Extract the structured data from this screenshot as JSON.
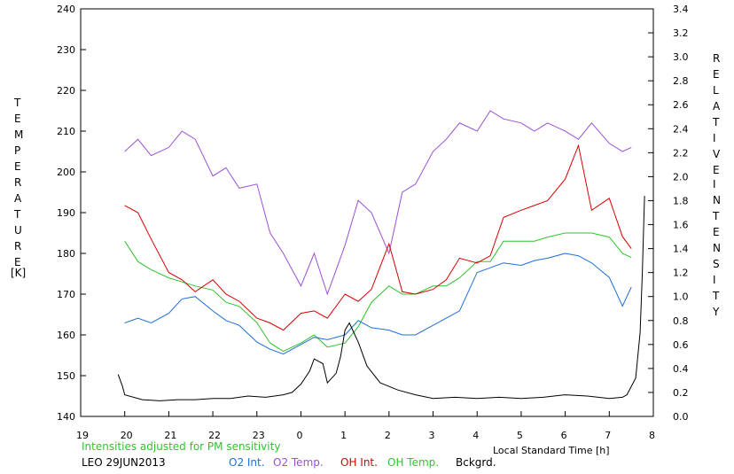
{
  "chart_data": {
    "type": "line",
    "left_axis": {
      "label_letters": [
        "T",
        "E",
        "M",
        "P",
        "E",
        "R",
        "A",
        "T",
        "U",
        "R",
        "E"
      ],
      "unit": "[K]",
      "range": [
        140,
        240
      ],
      "ticks": [
        "140",
        "150",
        "160",
        "170",
        "180",
        "190",
        "200",
        "210",
        "220",
        "230",
        "240"
      ]
    },
    "right_axis": {
      "label_letters_1": [
        "R",
        "E",
        "L",
        "A",
        "T",
        "I",
        "V",
        "E"
      ],
      "label_letters_2": [
        "I",
        "N",
        "T",
        "E",
        "N",
        "S",
        "I",
        "T",
        "Y"
      ],
      "range": [
        0.0,
        3.4
      ],
      "ticks": [
        "0.0",
        "0.2",
        "0.4",
        "0.6",
        "0.8",
        "1.0",
        "1.2",
        "1.4",
        "1.6",
        "1.8",
        "2.0",
        "2.2",
        "2.4",
        "2.6",
        "2.8",
        "3.0",
        "3.2",
        "3.4"
      ]
    },
    "x_axis": {
      "label": "Local Standard Time [h]",
      "range": [
        19,
        32
      ],
      "ticks": [
        "19",
        "20",
        "21",
        "22",
        "23",
        "0",
        "1",
        "2",
        "3",
        "4",
        "5",
        "6",
        "7",
        "8"
      ]
    },
    "note": "Intensities adjusted for PM sensitivity",
    "station": "LEO 29JUN2013",
    "series": [
      {
        "name": "O2 Int.",
        "color": "#1e6fd6",
        "axis": "right",
        "x": [
          20.0,
          20.3,
          20.6,
          21.0,
          21.3,
          21.6,
          22.0,
          22.3,
          22.6,
          23.0,
          23.3,
          23.6,
          24.0,
          24.3,
          24.6,
          25.0,
          25.3,
          25.6,
          26.0,
          26.3,
          26.6,
          27.0,
          27.3,
          27.6,
          28.0,
          28.3,
          28.6,
          29.0,
          29.3,
          29.6,
          30.0,
          30.3,
          30.6,
          31.0,
          31.3,
          31.5
        ],
        "y": [
          0.78,
          0.82,
          0.78,
          0.86,
          0.98,
          1.0,
          0.88,
          0.8,
          0.76,
          0.62,
          0.56,
          0.52,
          0.6,
          0.66,
          0.64,
          0.68,
          0.8,
          0.74,
          0.72,
          0.68,
          0.68,
          0.76,
          0.82,
          0.88,
          1.2,
          1.24,
          1.28,
          1.26,
          1.3,
          1.32,
          1.36,
          1.34,
          1.28,
          1.16,
          0.92,
          1.08
        ]
      },
      {
        "name": "O2 Temp.",
        "color": "#9b4fd6",
        "axis": "left",
        "x": [
          20.0,
          20.3,
          20.6,
          21.0,
          21.3,
          21.6,
          22.0,
          22.3,
          22.6,
          23.0,
          23.3,
          23.6,
          24.0,
          24.3,
          24.6,
          25.0,
          25.3,
          25.6,
          26.0,
          26.3,
          26.6,
          27.0,
          27.3,
          27.6,
          28.0,
          28.3,
          28.6,
          29.0,
          29.3,
          29.6,
          30.0,
          30.3,
          30.6,
          31.0,
          31.3,
          31.5
        ],
        "y": [
          205,
          208,
          204,
          206,
          210,
          208,
          199,
          201,
          196,
          197,
          185,
          180,
          172,
          180,
          170,
          182,
          193,
          190,
          180,
          195,
          197,
          205,
          208,
          212,
          210,
          215,
          213,
          212,
          210,
          212,
          210,
          208,
          212,
          207,
          205,
          206
        ]
      },
      {
        "name": "OH Int.",
        "color": "#d60000",
        "axis": "right",
        "x": [
          20.0,
          20.3,
          20.6,
          21.0,
          21.3,
          21.6,
          22.0,
          22.3,
          22.6,
          23.0,
          23.3,
          23.6,
          24.0,
          24.3,
          24.6,
          25.0,
          25.3,
          25.6,
          26.0,
          26.3,
          26.6,
          27.0,
          27.3,
          27.6,
          28.0,
          28.3,
          28.6,
          29.0,
          29.3,
          29.6,
          30.0,
          30.3,
          30.6,
          31.0,
          31.3,
          31.5
        ],
        "y": [
          1.76,
          1.7,
          1.48,
          1.2,
          1.14,
          1.04,
          1.14,
          1.02,
          0.96,
          0.82,
          0.78,
          0.72,
          0.86,
          0.88,
          0.82,
          1.02,
          0.96,
          1.06,
          1.44,
          1.04,
          1.02,
          1.06,
          1.14,
          1.32,
          1.28,
          1.34,
          1.66,
          1.72,
          1.76,
          1.8,
          1.98,
          2.26,
          1.72,
          1.82,
          1.5,
          1.4
        ]
      },
      {
        "name": "OH Temp.",
        "color": "#2fc42f",
        "axis": "left",
        "x": [
          20.0,
          20.3,
          20.6,
          21.0,
          21.3,
          21.6,
          22.0,
          22.3,
          22.6,
          23.0,
          23.3,
          23.6,
          24.0,
          24.3,
          24.6,
          25.0,
          25.3,
          25.6,
          26.0,
          26.3,
          26.6,
          27.0,
          27.3,
          27.6,
          28.0,
          28.3,
          28.6,
          29.0,
          29.3,
          29.6,
          30.0,
          30.3,
          30.6,
          31.0,
          31.3,
          31.5
        ],
        "y": [
          183,
          178,
          176,
          174,
          173,
          172,
          171,
          168,
          167,
          163,
          158,
          156,
          158,
          160,
          157,
          158,
          162,
          168,
          172,
          170,
          170,
          172,
          172,
          174,
          178,
          178,
          183,
          183,
          183,
          184,
          185,
          185,
          185,
          184,
          180,
          179
        ]
      },
      {
        "name": "Bckgrd.",
        "color": "#000000",
        "axis": "right",
        "x": [
          19.85,
          19.95,
          20.0,
          20.4,
          20.8,
          21.2,
          21.6,
          22.0,
          22.4,
          22.8,
          23.2,
          23.6,
          23.8,
          24.0,
          24.2,
          24.3,
          24.5,
          24.6,
          24.8,
          24.9,
          25.0,
          25.1,
          25.3,
          25.5,
          25.8,
          26.2,
          26.6,
          27.0,
          27.5,
          28.0,
          28.5,
          29.0,
          29.5,
          30.0,
          30.5,
          31.0,
          31.3,
          31.4,
          31.6,
          31.7,
          31.75,
          31.8
        ],
        "y": [
          0.35,
          0.25,
          0.18,
          0.14,
          0.13,
          0.14,
          0.14,
          0.15,
          0.15,
          0.17,
          0.16,
          0.18,
          0.2,
          0.27,
          0.38,
          0.48,
          0.44,
          0.28,
          0.36,
          0.5,
          0.72,
          0.78,
          0.62,
          0.42,
          0.28,
          0.22,
          0.18,
          0.15,
          0.16,
          0.15,
          0.16,
          0.15,
          0.16,
          0.18,
          0.17,
          0.15,
          0.16,
          0.18,
          0.32,
          0.7,
          1.2,
          1.84
        ]
      }
    ]
  }
}
